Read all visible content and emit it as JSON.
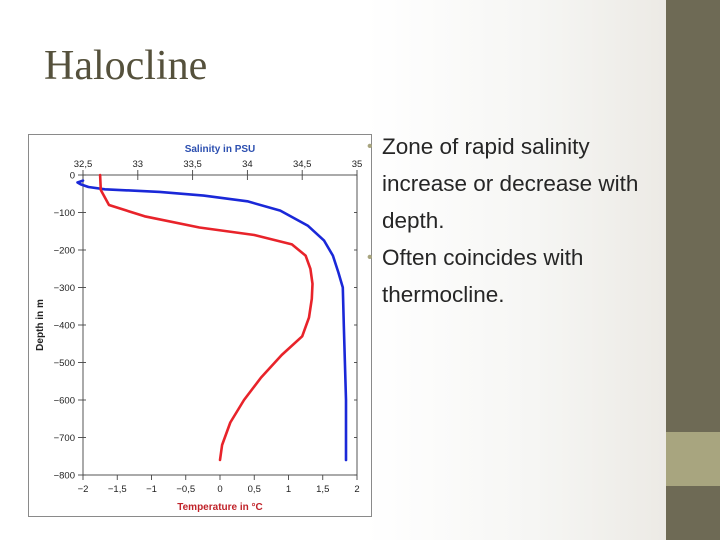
{
  "slide": {
    "title": "Halocline",
    "bullets": [
      "Zone of rapid salinity increase or decrease with depth.",
      "Often coincides with thermocline."
    ]
  },
  "colors": {
    "salinity": "#1a28d8",
    "temperature": "#e8232a",
    "salinity_label": "#2c4fb0",
    "temperature_label": "#c0232a",
    "title": "#55513c",
    "bar_dark": "#6e6a55",
    "bar_light": "#a8a57f"
  },
  "chart_data": {
    "type": "line",
    "top_axis_label": "Salinity in PSU",
    "bottom_axis_label": "Temperature in °C",
    "ylabel": "Depth in m",
    "top_ticks": [
      "32,5",
      "33",
      "33,5",
      "34",
      "34,5",
      "35"
    ],
    "bottom_ticks": [
      "−2",
      "−1,5",
      "−1",
      "−0,5",
      "0",
      "0,5",
      "1",
      "1,5",
      "2"
    ],
    "y_ticks": [
      "0",
      "−100",
      "−200",
      "−300",
      "−400",
      "−500",
      "−600",
      "−700",
      "−800"
    ],
    "salinity_range": [
      32.5,
      35
    ],
    "temperature_range": [
      -2,
      2
    ],
    "depth_range": [
      0,
      -800
    ],
    "series": [
      {
        "name": "Salinity",
        "axis": "top",
        "points": [
          [
            32.5,
            -15
          ],
          [
            32.45,
            -20
          ],
          [
            32.48,
            -25
          ],
          [
            32.55,
            -32
          ],
          [
            32.7,
            -38
          ],
          [
            33.2,
            -45
          ],
          [
            33.6,
            -55
          ],
          [
            34.0,
            -70
          ],
          [
            34.3,
            -95
          ],
          [
            34.55,
            -135
          ],
          [
            34.7,
            -175
          ],
          [
            34.78,
            -215
          ],
          [
            34.83,
            -260
          ],
          [
            34.87,
            -300
          ],
          [
            34.88,
            -400
          ],
          [
            34.89,
            -500
          ],
          [
            34.9,
            -600
          ],
          [
            34.9,
            -700
          ],
          [
            34.9,
            -760
          ]
        ]
      },
      {
        "name": "Temperature",
        "axis": "bottom",
        "points": [
          [
            -1.75,
            0
          ],
          [
            -1.74,
            -40
          ],
          [
            -1.62,
            -80
          ],
          [
            -1.1,
            -110
          ],
          [
            -0.3,
            -140
          ],
          [
            0.5,
            -160
          ],
          [
            1.05,
            -185
          ],
          [
            1.25,
            -215
          ],
          [
            1.32,
            -250
          ],
          [
            1.35,
            -290
          ],
          [
            1.34,
            -330
          ],
          [
            1.3,
            -380
          ],
          [
            1.2,
            -430
          ],
          [
            0.9,
            -480
          ],
          [
            0.6,
            -540
          ],
          [
            0.35,
            -600
          ],
          [
            0.15,
            -660
          ],
          [
            0.03,
            -720
          ],
          [
            0.0,
            -760
          ]
        ]
      }
    ]
  }
}
